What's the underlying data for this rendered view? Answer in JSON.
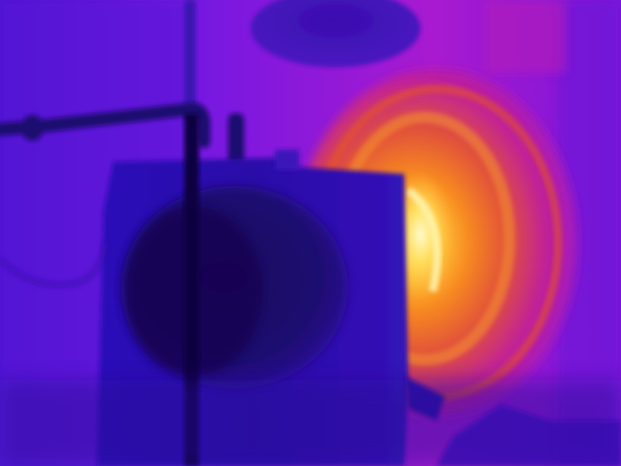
{
  "image": {
    "kind": "thermal-camera-frame",
    "palette": "iron",
    "colors": {
      "cold": "#1e0a78",
      "cool": "#3a10c8",
      "mid": "#8a18d8",
      "warm": "#c81aa8",
      "hot": "#f06a20",
      "hottest": "#ffe860"
    },
    "subjects": [
      "hot-cylindrical-opening",
      "foreground-housing",
      "horizontal-pipe",
      "vertical-rod",
      "upper-round-object"
    ]
  }
}
